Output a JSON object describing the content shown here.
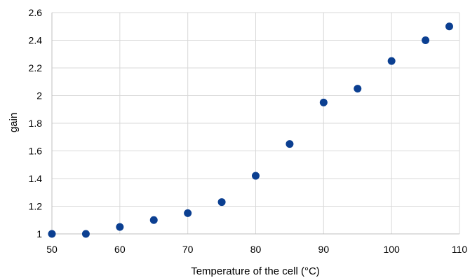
{
  "chart_data": {
    "type": "scatter",
    "xlabel": "Temperature of the cell (°C)",
    "ylabel": "gain",
    "xlim": [
      50,
      110
    ],
    "ylim": [
      1,
      2.6
    ],
    "x_ticks": [
      "50",
      "60",
      "70",
      "80",
      "90",
      "100",
      "110"
    ],
    "y_ticks": [
      "1",
      "1.2",
      "1.4",
      "1.6",
      "1.8",
      "2",
      "2.2",
      "2.4",
      "2.6"
    ],
    "grid": true,
    "legend": "none",
    "marker_color": "#0b3f91",
    "series": [
      {
        "x": [
          50,
          55,
          60,
          65,
          70,
          75,
          80,
          85,
          90,
          95,
          100,
          105,
          108.5
        ],
        "y": [
          1.0,
          1.0,
          1.05,
          1.1,
          1.15,
          1.23,
          1.42,
          1.65,
          1.95,
          2.05,
          2.25,
          2.4,
          2.5
        ]
      }
    ]
  }
}
